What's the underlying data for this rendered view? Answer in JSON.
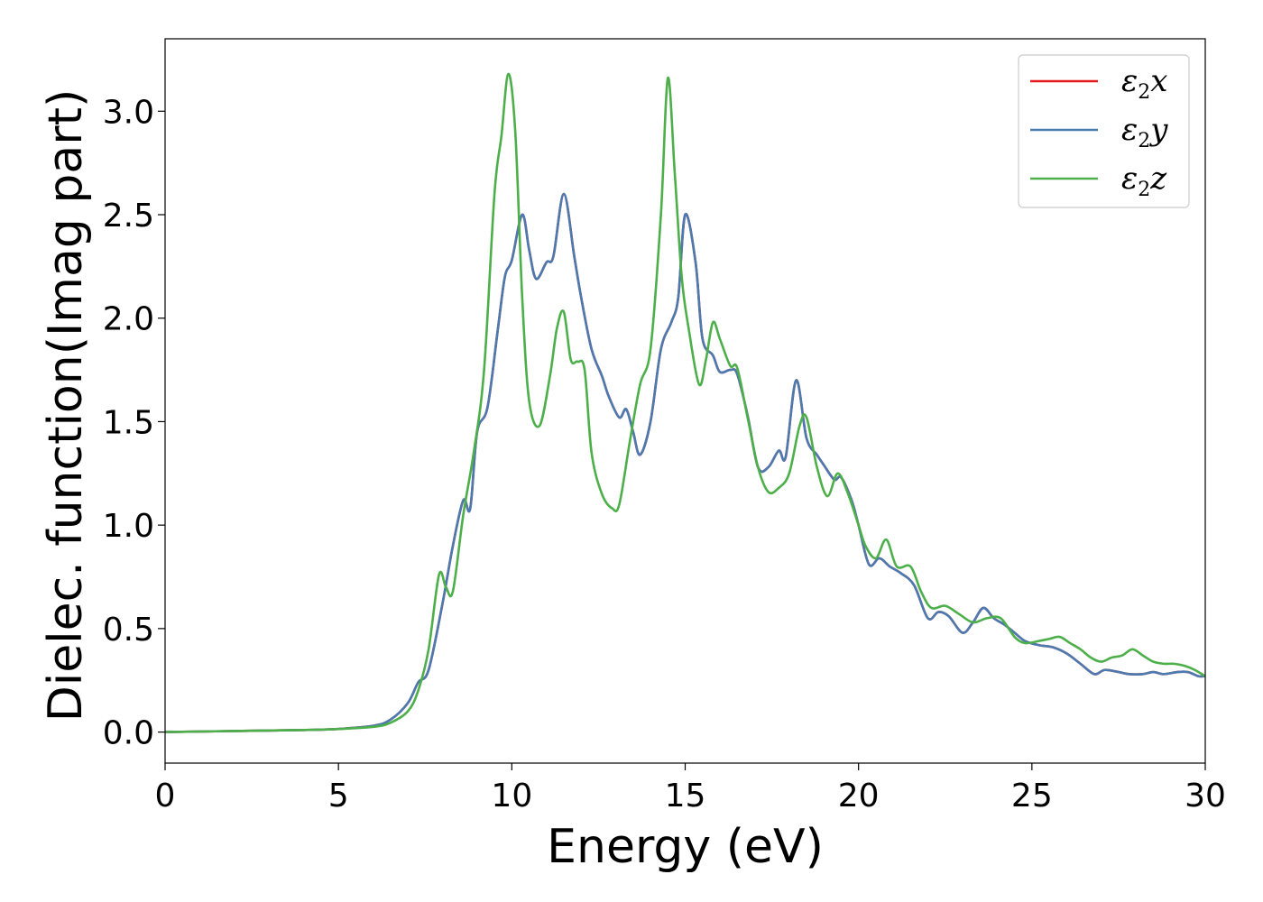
{
  "chart_data": {
    "type": "line",
    "title": "",
    "xlabel": "Energy (eV)",
    "ylabel": "Dielec. function(Imag part)",
    "xlim": [
      0,
      30
    ],
    "ylim": [
      -0.15,
      3.35
    ],
    "xticks": [
      0,
      5,
      10,
      15,
      20,
      25,
      30
    ],
    "xtick_labels": [
      "0",
      "5",
      "10",
      "15",
      "20",
      "25",
      "30"
    ],
    "yticks": [
      0.0,
      0.5,
      1.0,
      1.5,
      2.0,
      2.5,
      3.0
    ],
    "ytick_labels": [
      "0.0",
      "0.5",
      "1.0",
      "1.5",
      "2.0",
      "2.5",
      "3.0"
    ],
    "grid": false,
    "legend_position": "top-right",
    "series": [
      {
        "name": "ε2x",
        "symbol": "ε",
        "subscript": "2",
        "suffix": "x",
        "color": "#e41a1c",
        "x": [
          0,
          2,
          4,
          5,
          6,
          6.5,
          7,
          7.3,
          7.6,
          8,
          8.3,
          8.6,
          8.8,
          9,
          9.3,
          9.6,
          9.8,
          10,
          10.3,
          10.5,
          10.7,
          11,
          11.2,
          11.5,
          11.8,
          12,
          12.3,
          12.6,
          12.8,
          13.1,
          13.3,
          13.5,
          13.7,
          14,
          14.3,
          14.6,
          14.8,
          15,
          15.3,
          15.5,
          15.8,
          16,
          16.3,
          16.5,
          16.8,
          17.1,
          17.4,
          17.7,
          17.9,
          18.2,
          18.5,
          18.8,
          19,
          19.3,
          19.5,
          19.8,
          20,
          20.3,
          20.6,
          20.9,
          21.2,
          21.6,
          22,
          22.3,
          22.6,
          23,
          23.3,
          23.6,
          23.9,
          24.2,
          24.5,
          24.8,
          25.2,
          25.6,
          26,
          26.4,
          26.8,
          27.1,
          27.5,
          27.8,
          28.2,
          28.5,
          28.8,
          29.2,
          29.5,
          29.8,
          30
        ],
        "y": [
          0.0,
          0.005,
          0.01,
          0.015,
          0.03,
          0.06,
          0.14,
          0.24,
          0.3,
          0.62,
          0.9,
          1.12,
          1.08,
          1.45,
          1.57,
          1.95,
          2.2,
          2.28,
          2.5,
          2.33,
          2.19,
          2.27,
          2.3,
          2.6,
          2.3,
          2.1,
          1.85,
          1.72,
          1.62,
          1.52,
          1.56,
          1.45,
          1.34,
          1.5,
          1.85,
          1.98,
          2.1,
          2.5,
          2.27,
          1.9,
          1.82,
          1.74,
          1.75,
          1.73,
          1.53,
          1.28,
          1.28,
          1.36,
          1.33,
          1.7,
          1.42,
          1.34,
          1.29,
          1.22,
          1.23,
          1.12,
          1.0,
          0.81,
          0.84,
          0.8,
          0.77,
          0.71,
          0.55,
          0.58,
          0.56,
          0.48,
          0.53,
          0.6,
          0.55,
          0.52,
          0.48,
          0.44,
          0.42,
          0.41,
          0.38,
          0.33,
          0.28,
          0.3,
          0.29,
          0.28,
          0.28,
          0.29,
          0.28,
          0.29,
          0.29,
          0.27,
          0.27
        ]
      },
      {
        "name": "ε2y",
        "symbol": "ε",
        "subscript": "2",
        "suffix": "y",
        "color": "#4a7aaf",
        "x": [
          0,
          2,
          4,
          5,
          6,
          6.5,
          7,
          7.3,
          7.6,
          8,
          8.3,
          8.6,
          8.8,
          9,
          9.3,
          9.6,
          9.8,
          10,
          10.3,
          10.5,
          10.7,
          11,
          11.2,
          11.5,
          11.8,
          12,
          12.3,
          12.6,
          12.8,
          13.1,
          13.3,
          13.5,
          13.7,
          14,
          14.3,
          14.6,
          14.8,
          15,
          15.3,
          15.5,
          15.8,
          16,
          16.3,
          16.5,
          16.8,
          17.1,
          17.4,
          17.7,
          17.9,
          18.2,
          18.5,
          18.8,
          19,
          19.3,
          19.5,
          19.8,
          20,
          20.3,
          20.6,
          20.9,
          21.2,
          21.6,
          22,
          22.3,
          22.6,
          23,
          23.3,
          23.6,
          23.9,
          24.2,
          24.5,
          24.8,
          25.2,
          25.6,
          26,
          26.4,
          26.8,
          27.1,
          27.5,
          27.8,
          28.2,
          28.5,
          28.8,
          29.2,
          29.5,
          29.8,
          30
        ],
        "y": [
          0.0,
          0.005,
          0.01,
          0.015,
          0.03,
          0.06,
          0.14,
          0.24,
          0.3,
          0.62,
          0.9,
          1.12,
          1.08,
          1.45,
          1.57,
          1.95,
          2.2,
          2.28,
          2.5,
          2.33,
          2.19,
          2.27,
          2.3,
          2.6,
          2.3,
          2.1,
          1.85,
          1.72,
          1.62,
          1.52,
          1.56,
          1.45,
          1.34,
          1.5,
          1.85,
          1.98,
          2.1,
          2.5,
          2.27,
          1.9,
          1.82,
          1.74,
          1.75,
          1.73,
          1.53,
          1.28,
          1.28,
          1.36,
          1.33,
          1.7,
          1.42,
          1.34,
          1.29,
          1.22,
          1.23,
          1.12,
          1.0,
          0.81,
          0.84,
          0.8,
          0.77,
          0.71,
          0.55,
          0.58,
          0.56,
          0.48,
          0.53,
          0.6,
          0.55,
          0.52,
          0.48,
          0.44,
          0.42,
          0.41,
          0.38,
          0.33,
          0.28,
          0.3,
          0.29,
          0.28,
          0.28,
          0.29,
          0.28,
          0.29,
          0.29,
          0.27,
          0.27
        ]
      },
      {
        "name": "ε2z",
        "symbol": "ε",
        "subscript": "2",
        "suffix": "z",
        "color": "#4daf4a",
        "x": [
          0,
          2,
          4,
          5,
          6,
          6.5,
          7,
          7.3,
          7.6,
          7.9,
          8.1,
          8.3,
          8.6,
          8.9,
          9.2,
          9.5,
          9.7,
          9.9,
          10.1,
          10.3,
          10.5,
          10.8,
          11.1,
          11.3,
          11.5,
          11.7,
          11.9,
          12.1,
          12.3,
          12.6,
          12.9,
          13.1,
          13.4,
          13.7,
          14,
          14.3,
          14.5,
          14.7,
          14.9,
          15.1,
          15.4,
          15.6,
          15.8,
          16,
          16.3,
          16.5,
          16.8,
          17.1,
          17.4,
          17.7,
          18,
          18.3,
          18.5,
          18.8,
          19.1,
          19.4,
          19.7,
          20,
          20.2,
          20.5,
          20.8,
          21.1,
          21.5,
          21.8,
          22.1,
          22.5,
          22.9,
          23.3,
          23.7,
          24.1,
          24.5,
          24.8,
          25.2,
          25.5,
          25.8,
          26.1,
          26.4,
          26.7,
          27,
          27.3,
          27.6,
          27.9,
          28.2,
          28.5,
          28.8,
          29.1,
          29.4,
          29.7,
          30
        ],
        "y": [
          0.0,
          0.005,
          0.01,
          0.015,
          0.025,
          0.045,
          0.1,
          0.2,
          0.4,
          0.76,
          0.7,
          0.68,
          1.05,
          1.35,
          1.75,
          2.6,
          2.88,
          3.18,
          2.9,
          2.1,
          1.6,
          1.48,
          1.72,
          1.95,
          2.03,
          1.8,
          1.79,
          1.75,
          1.35,
          1.15,
          1.08,
          1.1,
          1.4,
          1.68,
          1.85,
          2.5,
          3.16,
          2.7,
          2.2,
          1.95,
          1.68,
          1.8,
          1.98,
          1.9,
          1.77,
          1.76,
          1.52,
          1.28,
          1.16,
          1.18,
          1.25,
          1.48,
          1.52,
          1.28,
          1.14,
          1.25,
          1.15,
          1.0,
          0.9,
          0.84,
          0.93,
          0.8,
          0.8,
          0.68,
          0.6,
          0.61,
          0.57,
          0.53,
          0.55,
          0.55,
          0.46,
          0.43,
          0.44,
          0.45,
          0.46,
          0.43,
          0.4,
          0.36,
          0.34,
          0.36,
          0.37,
          0.4,
          0.37,
          0.34,
          0.33,
          0.33,
          0.32,
          0.3,
          0.27
        ]
      }
    ]
  }
}
